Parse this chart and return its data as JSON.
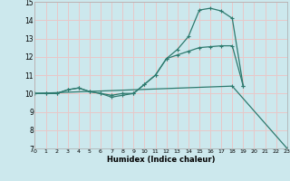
{
  "xlabel": "Humidex (Indice chaleur)",
  "bg_color": "#cce8ed",
  "grid_color": "#e8c8c8",
  "line_color": "#2d7a6e",
  "series1_y": [
    10.0,
    10.0,
    10.0,
    10.2,
    10.3,
    10.1,
    10.0,
    9.8,
    9.9,
    10.0,
    10.5,
    11.0,
    11.9,
    12.4,
    13.1,
    14.55,
    14.65,
    14.5,
    14.1,
    10.4,
    null,
    null,
    null,
    7.0
  ],
  "series2_y": [
    10.0,
    10.0,
    10.0,
    10.2,
    10.3,
    10.1,
    10.0,
    9.9,
    10.0,
    10.0,
    10.5,
    11.0,
    11.9,
    12.1,
    12.3,
    12.5,
    12.55,
    12.6,
    12.6,
    10.4,
    null,
    null,
    null,
    7.0
  ],
  "series3_y": [
    10.0,
    null,
    null,
    null,
    null,
    null,
    null,
    null,
    null,
    null,
    null,
    null,
    null,
    null,
    null,
    null,
    null,
    null,
    10.4,
    null,
    null,
    null,
    null,
    7.0
  ],
  "ylim": [
    7,
    15
  ],
  "xlim": [
    0,
    23
  ],
  "yticks": [
    7,
    8,
    9,
    10,
    11,
    12,
    13,
    14,
    15
  ],
  "xticks": [
    0,
    1,
    2,
    3,
    4,
    5,
    6,
    7,
    8,
    9,
    10,
    11,
    12,
    13,
    14,
    15,
    16,
    17,
    18,
    19,
    20,
    21,
    22,
    23
  ]
}
